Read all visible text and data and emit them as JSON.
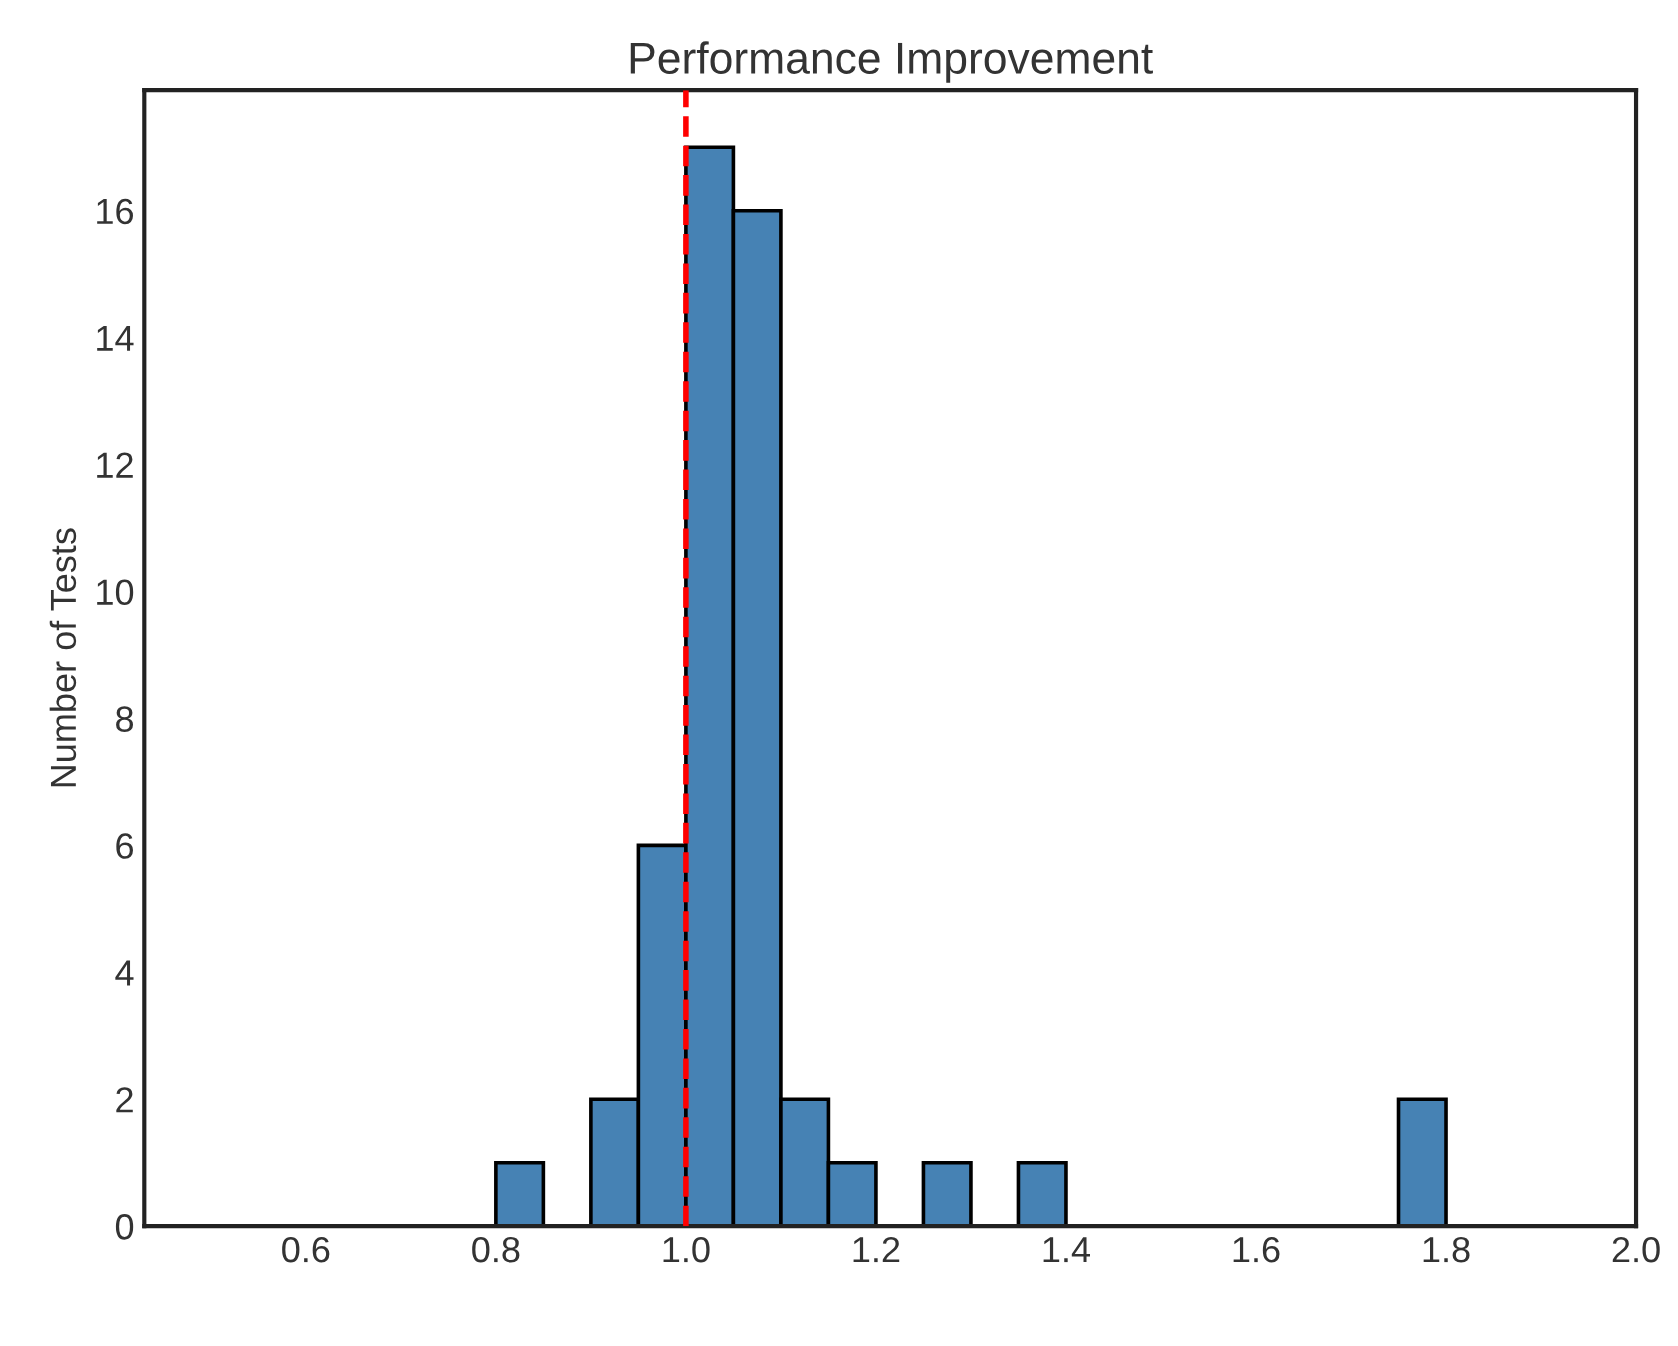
{
  "chart_data": {
    "type": "histogram",
    "title": "Performance Improvement",
    "ylabel": "Number of Tests",
    "bins": [
      0.8,
      0.85,
      0.9,
      0.95,
      1.0,
      1.05,
      1.1,
      1.15,
      1.2,
      1.25,
      1.3,
      1.35,
      1.4,
      1.45,
      1.5,
      1.55,
      1.6,
      1.65,
      1.7,
      1.75,
      1.8
    ],
    "values": [
      1,
      0,
      2,
      6,
      17,
      16,
      2,
      1,
      0,
      1,
      0,
      1,
      0,
      0,
      0,
      0,
      0,
      0,
      0,
      2
    ],
    "color": "#4682b4",
    "xlim": [
      0.43,
      2.0
    ],
    "xticks": [
      0.6,
      0.8,
      {
        "value": 1,
        "label": "1.0"
      },
      1.2,
      1.4,
      1.6,
      1.8,
      {
        "value": 2,
        "label": "2.0"
      }
    ],
    "ylim": [
      0,
      17.9
    ],
    "yticks": [
      0,
      2,
      4,
      6,
      8,
      10,
      12,
      14,
      16
    ],
    "ref_lines": [
      {
        "axis": "x",
        "value": 1.0,
        "color": "#ff0000",
        "line_style": "dashed"
      }
    ],
    "grid": false
  }
}
